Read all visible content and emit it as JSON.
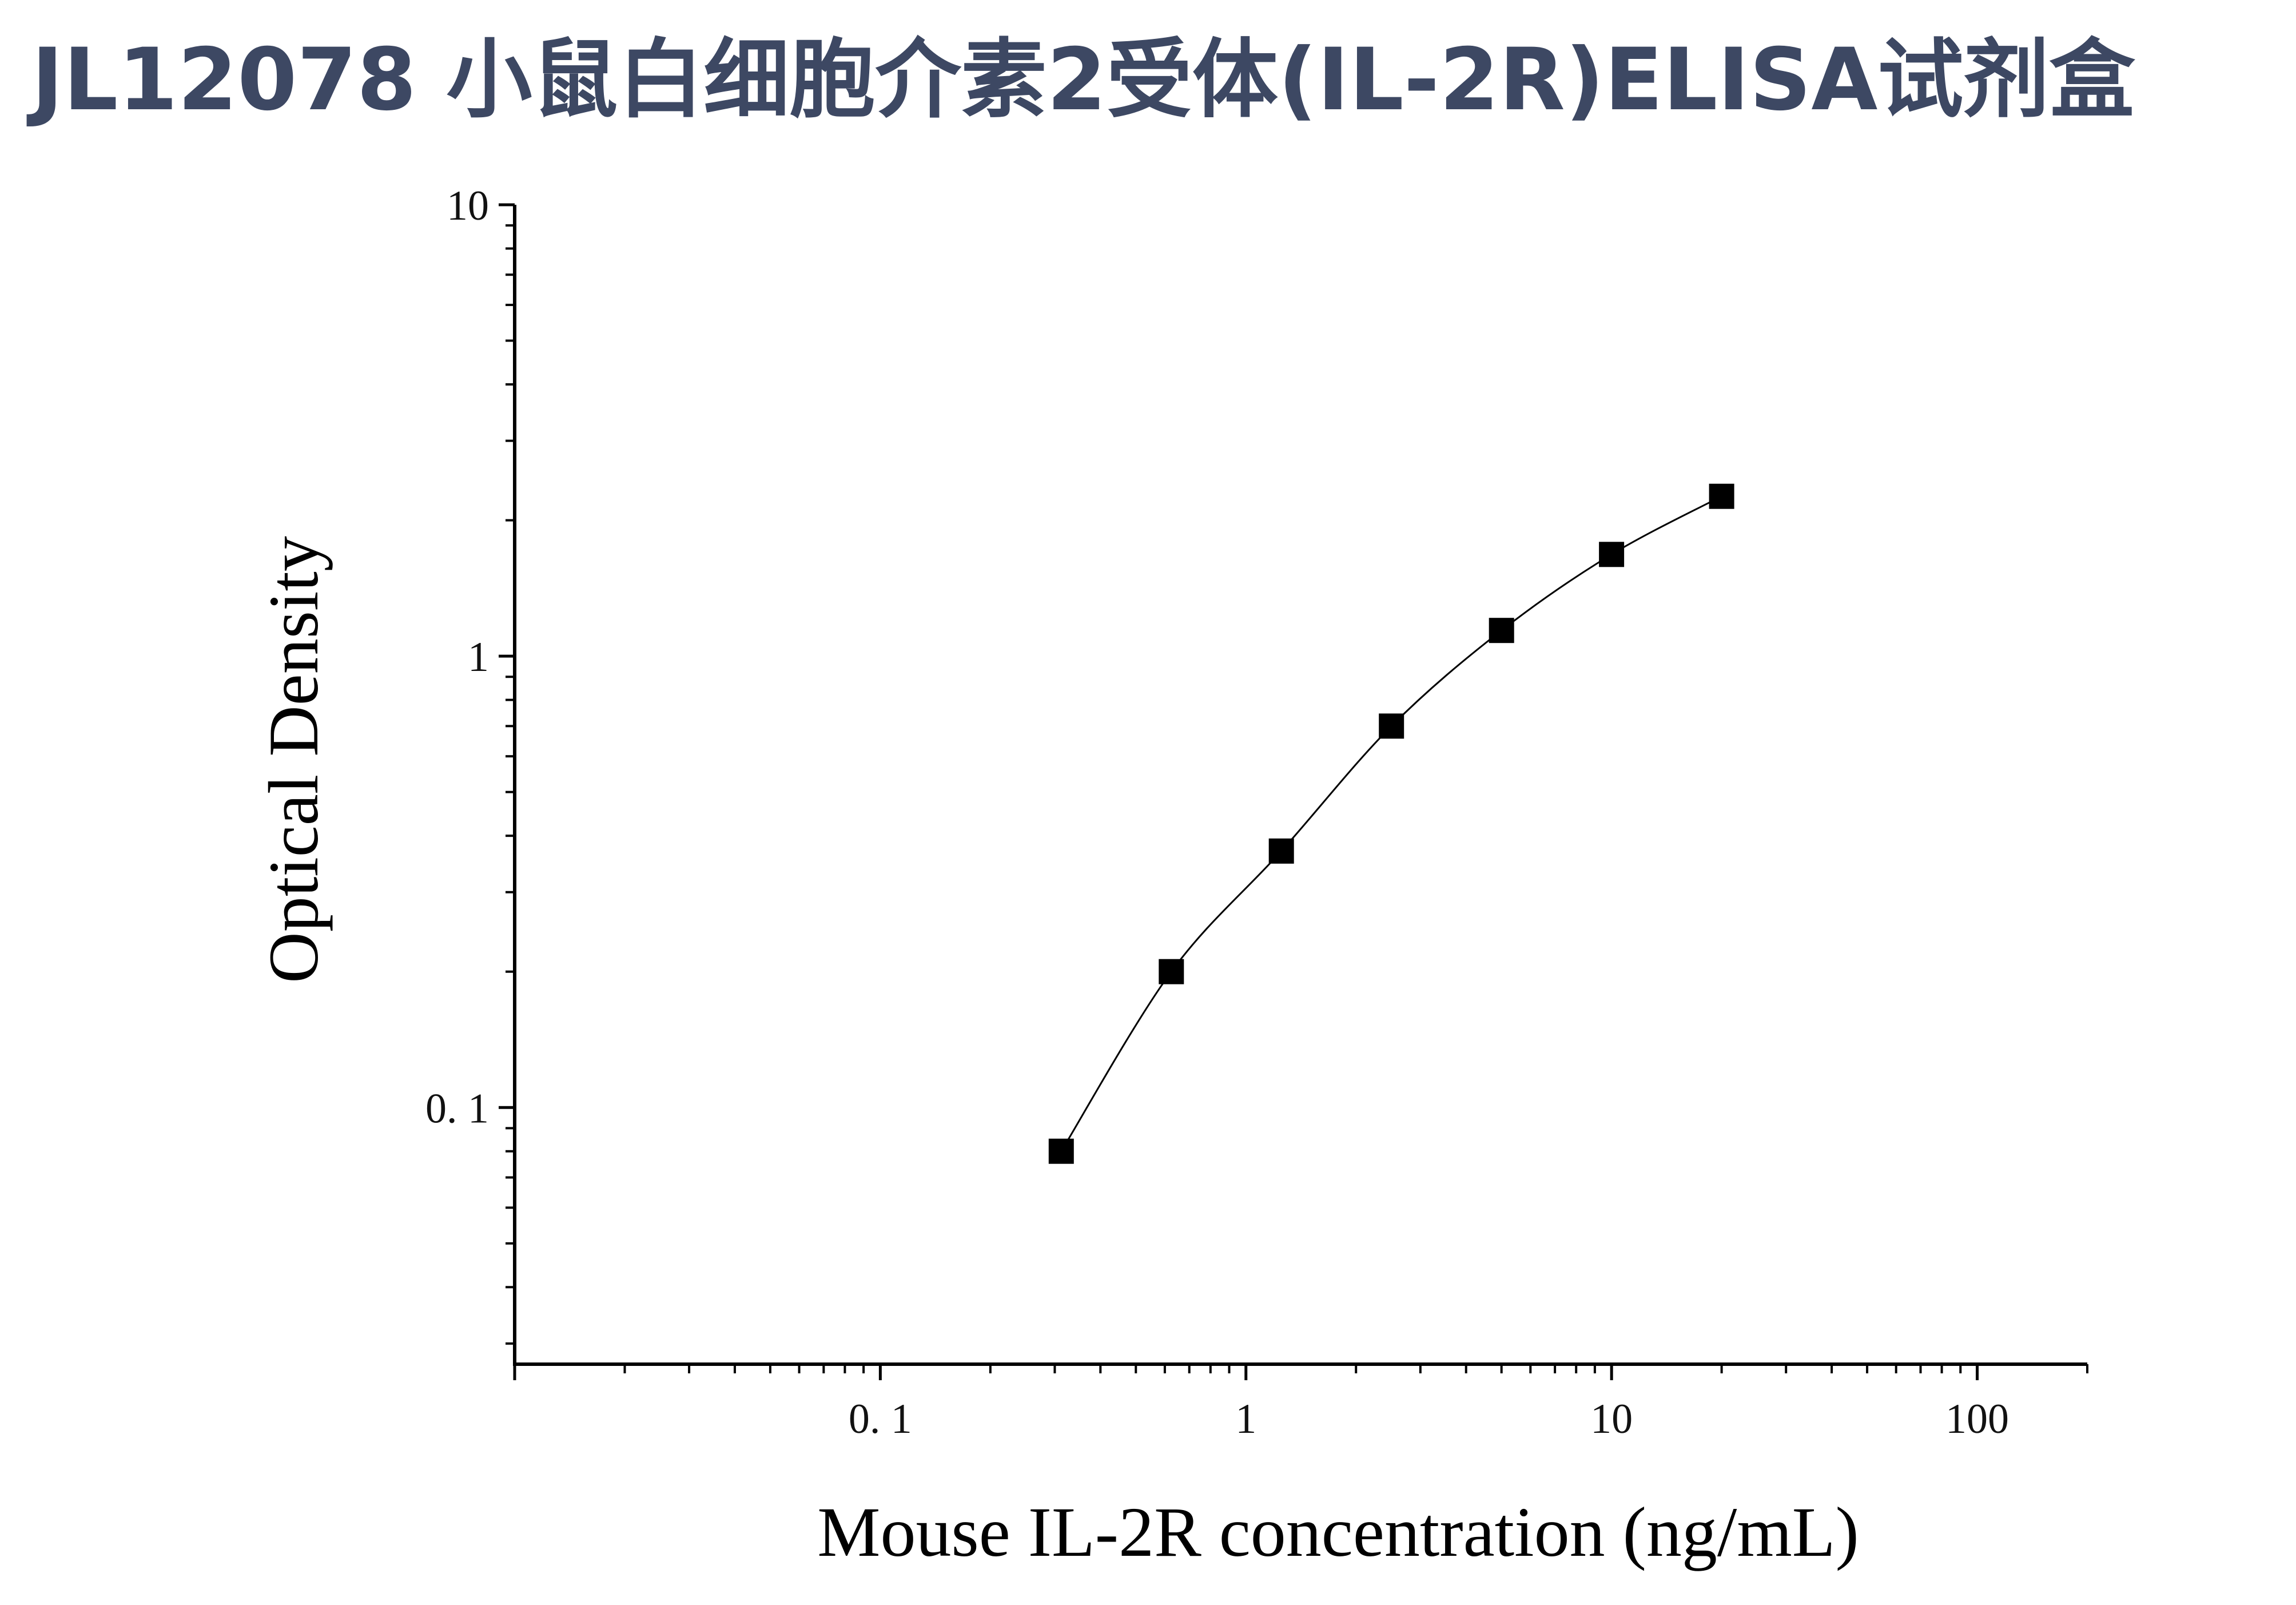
{
  "header": {
    "title": "JL12078 小鼠白细胞介素2受体(IL-2R)ELISA试剂盒"
  },
  "chart_data": {
    "type": "scatter",
    "xlabel": "Mouse IL-2R concentration (ng/mL)",
    "ylabel": "Optical Density",
    "x_scale": "log",
    "y_scale": "log",
    "xlim": [
      0.01,
      200
    ],
    "ylim": [
      0.027,
      10
    ],
    "x_ticks": [
      {
        "value": 0.1,
        "label": "0. 1"
      },
      {
        "value": 1,
        "label": "1"
      },
      {
        "value": 10,
        "label": "10"
      },
      {
        "value": 100,
        "label": "100"
      }
    ],
    "y_ticks": [
      {
        "value": 0.1,
        "label": "0. 1"
      },
      {
        "value": 1,
        "label": "1"
      },
      {
        "value": 10,
        "label": "10"
      }
    ],
    "grid": false,
    "legend": "none",
    "series": [
      {
        "x": [
          0.3125,
          0.625,
          1.25,
          2.5,
          5,
          10,
          20
        ],
        "y": [
          0.08,
          0.2,
          0.37,
          0.7,
          1.14,
          1.68,
          2.26
        ],
        "marker": "square",
        "fit_line": true,
        "color": "#000000"
      }
    ]
  }
}
